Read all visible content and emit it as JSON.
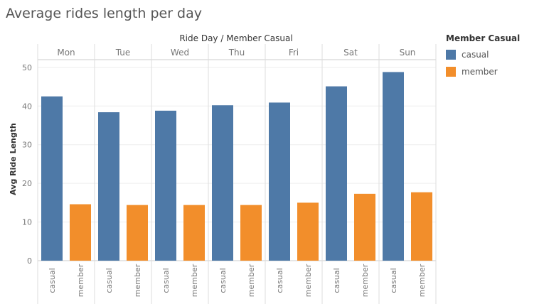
{
  "title": "Average rides length per day",
  "chart_data": {
    "type": "bar",
    "column_header": "Ride Day / Member Casual",
    "categories": [
      "Mon",
      "Tue",
      "Wed",
      "Thu",
      "Fri",
      "Sat",
      "Sun"
    ],
    "sub_categories": [
      "casual",
      "member"
    ],
    "series": [
      {
        "name": "casual",
        "color": "#4e79a7",
        "values": [
          42.5,
          38.4,
          38.8,
          40.2,
          40.9,
          45.1,
          48.8
        ]
      },
      {
        "name": "member",
        "color": "#f28e2b",
        "values": [
          14.6,
          14.4,
          14.4,
          14.4,
          15.0,
          17.3,
          17.7
        ]
      }
    ],
    "ylabel": "Avg Ride Length",
    "ylim": [
      0,
      52
    ],
    "yticks": [
      0,
      10,
      20,
      30,
      40,
      50
    ],
    "grid": true,
    "legend": {
      "title": "Member Casual",
      "position": "right"
    }
  }
}
